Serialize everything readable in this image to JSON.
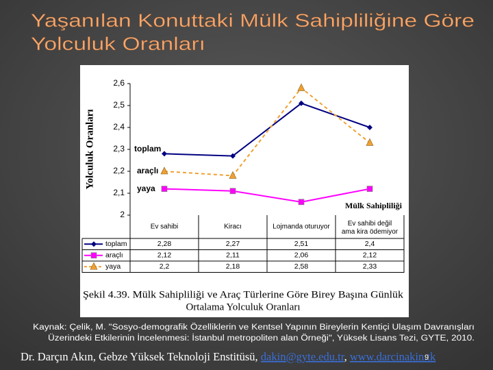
{
  "slide": {
    "title": [
      "Yaşanılan Konuttaki Mülk Sahipliliğine Göre",
      "Yolculuk Oranları"
    ],
    "source": [
      "Kaynak: Çelik, M. \"Sosyo-demografik Özelliklerin ve Kentsel Yapının Bireylerin Kentiçi Ulaşım Davranışları",
      "Üzerindeki Etkilerinin İncelenmesi: İstanbul metropoliten alan Örneği\", Yüksek Lisans Tezi, GYTE, 2010."
    ],
    "footer": {
      "author": "Dr. Darçın Akın, Gebze Yüksek Teknoloji Enstitüsü, ",
      "email": "dakin@gyte.edu.tr",
      "separator": ", ",
      "website": "www.darcinakin.tk",
      "page": "9"
    }
  },
  "chart_data": {
    "type": "line",
    "ylabel": "Yolculuk Oranları",
    "xlabel": "Mülk Sahipliliği",
    "caption": [
      "Şekil 4.39. Mülk Sahipliliği ve Araç Türlerine Göre Birey Başına Günlük",
      "Ortalama Yolculuk Oranları"
    ],
    "categories": [
      "Ev sahibi",
      "Kiracı",
      "Lojmanda oturuyor",
      "Ev sahibi değil ama kira ödemiyor"
    ],
    "ylim": [
      2,
      2.6
    ],
    "yticks": [
      2,
      {
        "value": 2.1,
        "label": "2,1"
      },
      {
        "value": 2.2,
        "label": "2,2"
      },
      {
        "value": 2.3,
        "label": "2,3"
      },
      {
        "value": 2.4,
        "label": "2,4"
      },
      {
        "value": 2.5,
        "label": "2,5"
      },
      {
        "value": 2.6,
        "label": "2,6"
      }
    ],
    "grid": false,
    "series": [
      {
        "name": "toplam",
        "color": "#000080",
        "marker": "diamond",
        "dashed": false,
        "values": [
          2.28,
          2.27,
          2.51,
          2.4
        ],
        "value_labels": [
          "2,28",
          "2,27",
          "2,51",
          "2,4"
        ]
      },
      {
        "name": "araçlı",
        "color": "#ff00ff",
        "marker": "square",
        "dashed": false,
        "values": [
          2.12,
          2.11,
          2.06,
          2.12
        ],
        "value_labels": [
          "2,12",
          "2,11",
          "2,06",
          "2,12"
        ]
      },
      {
        "name": "yaya",
        "color": "#f0a030",
        "marker": "triangle",
        "dashed": true,
        "values": [
          2.2,
          2.18,
          2.58,
          2.33
        ],
        "value_labels": [
          "2,2",
          "2,18",
          "2,58",
          "2,33"
        ]
      }
    ]
  }
}
